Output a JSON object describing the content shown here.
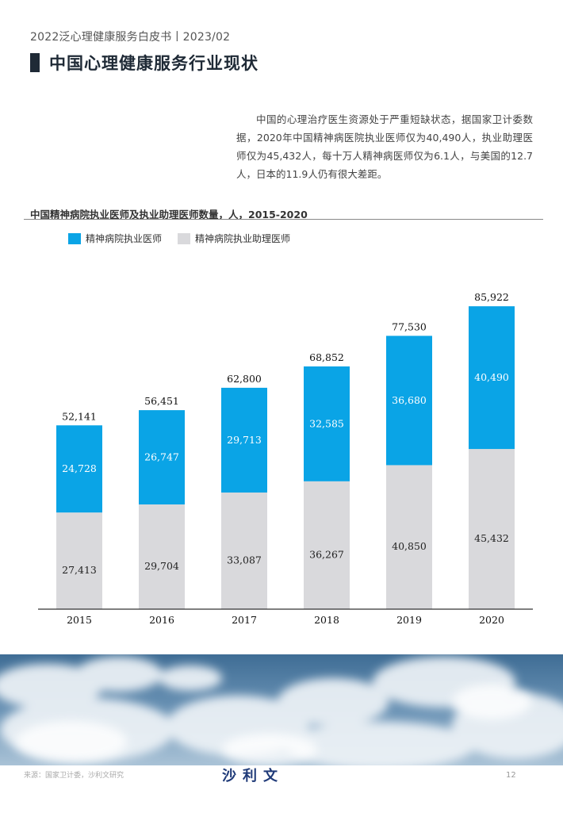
{
  "header": {
    "line": "2022泛心理健康服务白皮书丨2023/02"
  },
  "page_title": "中国心理健康服务行业现状",
  "intro_text": "中国的心理治疗医生资源处于严重短缺状态，据国家卫计委数据，2020年中国精神病医院执业医师仅为40,490人，执业助理医师仅为45,432人，每十万人精神病医师仅为6.1人，与美国的12.7人，日本的11.9人仍有很大差距。",
  "chart_data": {
    "type": "bar",
    "stacked": true,
    "title": "中国精神病院执业医师及执业助理医师数量，人，2015-2020",
    "categories": [
      "2015",
      "2016",
      "2017",
      "2018",
      "2019",
      "2020"
    ],
    "series": [
      {
        "name": "精神病院执业助理医师",
        "color": "#d9d9dc",
        "label_color": "#222222",
        "values": [
          27413,
          29704,
          33087,
          36267,
          40850,
          45432
        ]
      },
      {
        "name": "精神病院执业医师",
        "color": "#0aa4e6",
        "label_color": "#ffffff",
        "values": [
          24728,
          26747,
          29713,
          32585,
          36680,
          40490
        ]
      }
    ],
    "totals": [
      52141,
      56451,
      62800,
      68852,
      77530,
      85922
    ],
    "ylim": [
      0,
      90000
    ],
    "legend_position": "top-left",
    "grid": false
  },
  "colors": {
    "accent": "#0aa4e6",
    "secondary": "#d9d9dc",
    "title": "#1f2a36",
    "logo": "#1f3a78"
  },
  "footer": {
    "source": "来源：国家卫计委，沙利文研究",
    "logo": "沙利文",
    "page_number": "12"
  }
}
